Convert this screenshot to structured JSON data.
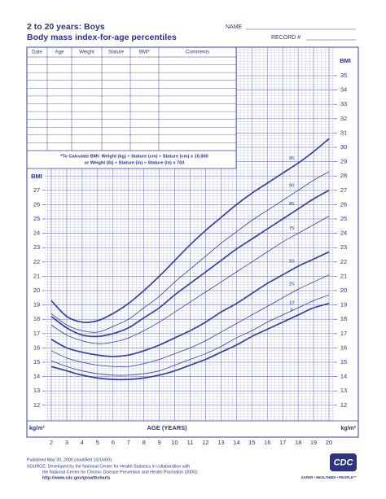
{
  "header": {
    "title": "2 to 20 years: Boys",
    "subtitle": "Body mass index-for-age percentiles",
    "name_label": "NAME",
    "record_label": "RECORD #"
  },
  "table": {
    "columns": [
      "Date",
      "Age",
      "Weight",
      "Stature",
      "BMI*",
      "Comments"
    ]
  },
  "note": {
    "line1": "*To Calculate BMI: Weight (kg) ÷ Stature (cm) ÷ Stature (cm) x 10,000",
    "line2": "or Weight (lb) ÷ Stature (in) ÷ Stature (in) x 703"
  },
  "chart_data": {
    "type": "line",
    "y_title": "BMI",
    "unit": "kg/m²",
    "x_title": "AGE (YEARS)",
    "x": [
      2,
      3,
      4,
      5,
      6,
      7,
      8,
      9,
      10,
      11,
      12,
      13,
      14,
      15,
      16,
      17,
      18,
      19,
      20
    ],
    "xlim": [
      2,
      20
    ],
    "xticks": [
      2,
      3,
      4,
      5,
      6,
      7,
      8,
      9,
      10,
      11,
      12,
      13,
      14,
      15,
      16,
      17,
      18,
      19,
      20
    ],
    "ylim": [
      12,
      35
    ],
    "yticks_left": [
      12,
      13,
      14,
      15,
      16,
      17,
      18,
      19,
      20,
      21,
      22,
      23,
      24,
      25,
      26,
      27
    ],
    "yticks_right": [
      12,
      13,
      14,
      15,
      16,
      17,
      18,
      19,
      20,
      21,
      22,
      23,
      24,
      25,
      26,
      27,
      28,
      29,
      30,
      31,
      32,
      33,
      34,
      35
    ],
    "grid": true,
    "series": [
      {
        "name": "95",
        "color": "#3a3f9a",
        "bold": true,
        "values": [
          19.3,
          18.2,
          17.8,
          17.9,
          18.4,
          19.1,
          20.0,
          21.0,
          22.1,
          23.2,
          24.2,
          25.1,
          26.0,
          26.8,
          27.5,
          28.2,
          28.9,
          29.7,
          30.6
        ]
      },
      {
        "name": "90",
        "color": "#3a3f9a",
        "bold": false,
        "values": [
          18.4,
          17.6,
          17.2,
          17.1,
          17.5,
          18.0,
          18.8,
          19.6,
          20.6,
          21.5,
          22.4,
          23.3,
          24.1,
          24.9,
          25.6,
          26.3,
          27.0,
          27.7,
          28.3
        ]
      },
      {
        "name": "85",
        "color": "#3a3f9a",
        "bold": true,
        "values": [
          18.2,
          17.4,
          16.9,
          16.8,
          17.0,
          17.4,
          18.1,
          18.8,
          19.7,
          20.5,
          21.3,
          22.1,
          22.9,
          23.6,
          24.3,
          25.0,
          25.7,
          26.4,
          27.0
        ]
      },
      {
        "name": "75",
        "color": "#3a3f9a",
        "bold": false,
        "values": [
          17.6,
          16.9,
          16.5,
          16.3,
          16.4,
          16.7,
          17.2,
          17.8,
          18.5,
          19.2,
          19.9,
          20.6,
          21.3,
          22.0,
          22.7,
          23.4,
          24.0,
          24.6,
          25.2
        ]
      },
      {
        "name": "50",
        "color": "#3a3f9a",
        "bold": true,
        "values": [
          16.6,
          16.0,
          15.7,
          15.5,
          15.4,
          15.5,
          15.8,
          16.2,
          16.7,
          17.2,
          17.8,
          18.5,
          19.1,
          19.8,
          20.5,
          21.1,
          21.7,
          22.2,
          22.7
        ]
      },
      {
        "name": "25",
        "color": "#3a3f9a",
        "bold": false,
        "values": [
          15.8,
          15.3,
          15.0,
          14.8,
          14.7,
          14.7,
          14.9,
          15.2,
          15.6,
          16.0,
          16.5,
          17.1,
          17.7,
          18.3,
          18.9,
          19.5,
          20.1,
          20.6,
          21.1
        ]
      },
      {
        "name": "10",
        "color": "#3a3f9a",
        "bold": false,
        "values": [
          15.1,
          14.7,
          14.4,
          14.2,
          14.1,
          14.1,
          14.2,
          14.4,
          14.8,
          15.2,
          15.6,
          16.1,
          16.7,
          17.2,
          17.8,
          18.3,
          18.8,
          19.3,
          19.7
        ]
      },
      {
        "name": "5",
        "color": "#3a3f9a",
        "bold": true,
        "values": [
          14.7,
          14.4,
          14.1,
          13.9,
          13.8,
          13.8,
          13.9,
          14.1,
          14.4,
          14.8,
          15.2,
          15.7,
          16.2,
          16.8,
          17.3,
          17.8,
          18.3,
          18.8,
          19.1
        ]
      }
    ]
  },
  "footer": {
    "published": "Published May 30, 2000 (modified 10/16/00).",
    "source1": "SOURCE: Developed by the National Center for Health Statistics in collaboration with",
    "source2": "the National Center for Chronic Disease Prevention and Health Promotion (2000).",
    "url": "http://www.cdc.gov/growthcharts"
  },
  "logo": {
    "text": "CDC",
    "tagline": "SAFER • HEALTHIER • PEOPLE™"
  }
}
